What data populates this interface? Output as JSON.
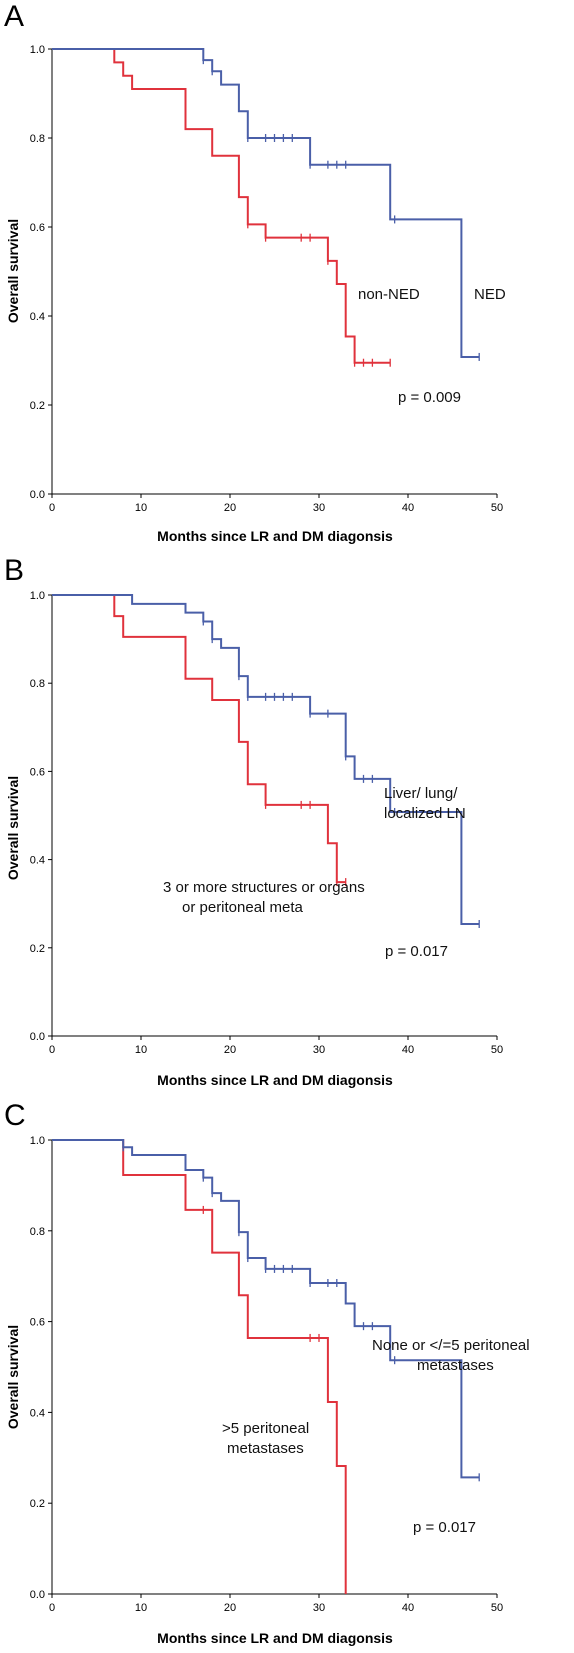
{
  "chart_data": [
    {
      "type": "line",
      "panel_label": "A",
      "xlabel": "Months since LR and DM diagonsis",
      "ylabel": "Overall survival",
      "xlim": [
        0,
        50
      ],
      "ylim": [
        0.0,
        1.0
      ],
      "xticks": [
        "0",
        "10",
        "20",
        "30",
        "40",
        "50"
      ],
      "yticks": [
        "0.0",
        "0.2",
        "0.4",
        "0.6",
        "0.8",
        "1.0"
      ],
      "series": [
        {
          "name": "NED",
          "color": "#4a5fa8",
          "steps": [
            [
              0,
              1.0
            ],
            [
              17,
              0.975
            ],
            [
              18,
              0.95
            ],
            [
              19,
              0.92
            ],
            [
              21,
              0.86
            ],
            [
              22,
              0.8
            ],
            [
              29,
              0.74
            ],
            [
              38,
              0.617
            ],
            [
              46,
              0.308
            ]
          ],
          "end": 48,
          "censored": [
            [
              17,
              0.975
            ],
            [
              18,
              0.95
            ],
            [
              22,
              0.8
            ],
            [
              24,
              0.8
            ],
            [
              25,
              0.8
            ],
            [
              26,
              0.8
            ],
            [
              27,
              0.8
            ],
            [
              29,
              0.74
            ],
            [
              31,
              0.74
            ],
            [
              32,
              0.74
            ],
            [
              33,
              0.74
            ],
            [
              38.5,
              0.617
            ],
            [
              48,
              0.308
            ]
          ]
        },
        {
          "name": "non-NED",
          "color": "#e0323c",
          "steps": [
            [
              0,
              1.0
            ],
            [
              7,
              0.97
            ],
            [
              8,
              0.94
            ],
            [
              9,
              0.91
            ],
            [
              15,
              0.82
            ],
            [
              18,
              0.76
            ],
            [
              21,
              0.667
            ],
            [
              22,
              0.606
            ],
            [
              24,
              0.576
            ],
            [
              31,
              0.524
            ],
            [
              32,
              0.472
            ],
            [
              33,
              0.354
            ],
            [
              34,
              0.295
            ]
          ],
          "end": 38,
          "censored": [
            [
              22,
              0.606
            ],
            [
              24,
              0.576
            ],
            [
              28,
              0.576
            ],
            [
              29,
              0.576
            ],
            [
              31,
              0.524
            ],
            [
              34,
              0.295
            ],
            [
              35,
              0.295
            ],
            [
              36,
              0.295
            ],
            [
              38,
              0.295
            ]
          ]
        }
      ],
      "annotations": [
        "non-NED",
        "NED",
        "p = 0.009"
      ]
    },
    {
      "type": "line",
      "panel_label": "B",
      "xlabel": "Months since LR and DM diagonsis",
      "ylabel": "Overall survival",
      "xlim": [
        0,
        50
      ],
      "ylim": [
        0.0,
        1.0
      ],
      "xticks": [
        "0",
        "10",
        "20",
        "30",
        "40",
        "50"
      ],
      "yticks": [
        "0.0",
        "0.2",
        "0.4",
        "0.6",
        "0.8",
        "1.0"
      ],
      "series": [
        {
          "name": "Liver/ lung/ localized LN",
          "color": "#4a5fa8",
          "steps": [
            [
              0,
              1.0
            ],
            [
              9,
              0.98
            ],
            [
              15,
              0.96
            ],
            [
              17,
              0.94
            ],
            [
              18,
              0.9
            ],
            [
              19,
              0.88
            ],
            [
              21,
              0.816
            ],
            [
              22,
              0.769
            ],
            [
              29,
              0.731
            ],
            [
              33,
              0.634
            ],
            [
              34,
              0.583
            ],
            [
              38,
              0.508
            ],
            [
              46,
              0.254
            ]
          ],
          "end": 48,
          "censored": [
            [
              17,
              0.94
            ],
            [
              18,
              0.9
            ],
            [
              21,
              0.816
            ],
            [
              22,
              0.769
            ],
            [
              24,
              0.769
            ],
            [
              25,
              0.769
            ],
            [
              26,
              0.769
            ],
            [
              27,
              0.769
            ],
            [
              29,
              0.731
            ],
            [
              31,
              0.731
            ],
            [
              33,
              0.634
            ],
            [
              35,
              0.583
            ],
            [
              36,
              0.583
            ],
            [
              38.5,
              0.508
            ],
            [
              48,
              0.254
            ]
          ]
        },
        {
          "name": "3 or more structures or organs or peritoneal meta",
          "color": "#e0323c",
          "steps": [
            [
              0,
              1.0
            ],
            [
              7,
              0.952
            ],
            [
              8,
              0.905
            ],
            [
              15,
              0.81
            ],
            [
              18,
              0.762
            ],
            [
              21,
              0.667
            ],
            [
              22,
              0.571
            ],
            [
              24,
              0.524
            ],
            [
              31,
              0.437
            ],
            [
              32,
              0.349
            ]
          ],
          "end": 33,
          "censored": [
            [
              24,
              0.524
            ],
            [
              28,
              0.524
            ],
            [
              29,
              0.524
            ],
            [
              32,
              0.349
            ],
            [
              33,
              0.349
            ]
          ]
        }
      ],
      "annotations": [
        "Liver/ lung/",
        "localized LN",
        "3 or more structures or organs",
        "or peritoneal meta",
        "p = 0.017"
      ]
    },
    {
      "type": "line",
      "panel_label": "C",
      "xlabel": "Months since LR and DM diagonsis",
      "ylabel": "Overall survival",
      "xlim": [
        0,
        50
      ],
      "ylim": [
        0.0,
        1.0
      ],
      "xticks": [
        "0",
        "10",
        "20",
        "30",
        "40",
        "50"
      ],
      "yticks": [
        "0.0",
        "0.2",
        "0.4",
        "0.6",
        "0.8",
        "1.0"
      ],
      "series": [
        {
          "name": "None or </=5 peritoneal metastases",
          "color": "#4a5fa8",
          "steps": [
            [
              0,
              1.0
            ],
            [
              8,
              0.984
            ],
            [
              9,
              0.967
            ],
            [
              15,
              0.934
            ],
            [
              17,
              0.917
            ],
            [
              18,
              0.883
            ],
            [
              19,
              0.866
            ],
            [
              21,
              0.797
            ],
            [
              22,
              0.74
            ],
            [
              24,
              0.716
            ],
            [
              29,
              0.685
            ],
            [
              33,
              0.64
            ],
            [
              34,
              0.59
            ],
            [
              38,
              0.515
            ],
            [
              46,
              0.257
            ]
          ],
          "end": 48,
          "censored": [
            [
              8,
              0.984
            ],
            [
              17,
              0.917
            ],
            [
              18,
              0.883
            ],
            [
              21,
              0.797
            ],
            [
              22,
              0.74
            ],
            [
              24,
              0.716
            ],
            [
              25,
              0.716
            ],
            [
              26,
              0.716
            ],
            [
              27,
              0.716
            ],
            [
              29,
              0.685
            ],
            [
              31,
              0.685
            ],
            [
              32,
              0.685
            ],
            [
              35,
              0.59
            ],
            [
              36,
              0.59
            ],
            [
              38.5,
              0.515
            ],
            [
              48,
              0.257
            ]
          ]
        },
        {
          "name": ">5 peritoneal metastases",
          "color": "#e0323c",
          "steps": [
            [
              0,
              1.0
            ],
            [
              8,
              0.923
            ],
            [
              15,
              0.846
            ],
            [
              18,
              0.752
            ],
            [
              21,
              0.658
            ],
            [
              22,
              0.564
            ],
            [
              31,
              0.423
            ],
            [
              32,
              0.282
            ],
            [
              33,
              0.0
            ]
          ],
          "end": 33,
          "censored": [
            [
              17,
              0.846
            ],
            [
              29,
              0.564
            ],
            [
              30,
              0.564
            ]
          ]
        }
      ],
      "annotations": [
        "None or </=5 peritoneal",
        "metastases",
        ">5 peritoneal",
        "metastases",
        "p = 0.017"
      ]
    }
  ]
}
